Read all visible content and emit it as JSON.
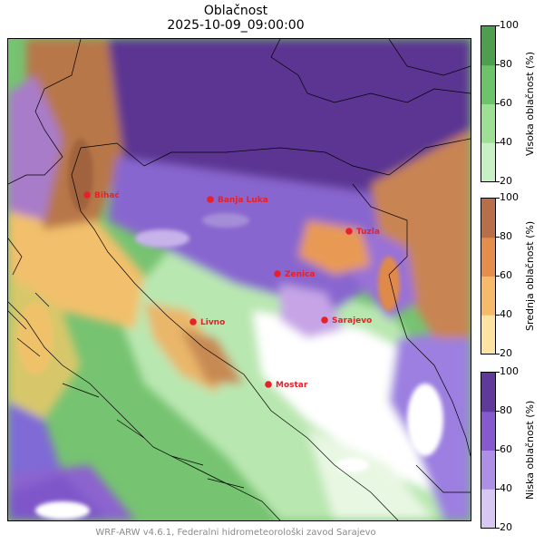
{
  "title": "Oblačnost",
  "subtitle": "2025-10-09_09:00:00",
  "footer": "WRF-ARW v4.6.1, Federalni hidrometeorološki zavod Sarajevo",
  "cities": [
    {
      "name": "Bihać"
    },
    {
      "name": "Banja Luka"
    },
    {
      "name": "Tuzla"
    },
    {
      "name": "Zenica"
    },
    {
      "name": "Sarajevo"
    },
    {
      "name": "Livno"
    },
    {
      "name": "Mostar"
    }
  ],
  "colorbars": [
    {
      "label": "Visoka oblačnost (%)",
      "ticks": [
        "100",
        "80",
        "60",
        "40",
        "20"
      ],
      "colors": [
        "#c7f1c4",
        "#9edf96",
        "#6cc36a",
        "#4f9d4f"
      ]
    },
    {
      "label": "Srednja oblačnost (%)",
      "ticks": [
        "100",
        "80",
        "60",
        "40",
        "20"
      ],
      "colors": [
        "#fde3a2",
        "#f5ba6a",
        "#e48d4c",
        "#b86e48"
      ]
    },
    {
      "label": "Niska oblačnost (%)",
      "ticks": [
        "100",
        "80",
        "60",
        "40",
        "20"
      ],
      "colors": [
        "#d6c7f3",
        "#ad90e6",
        "#8659cf",
        "#5f3a9a"
      ]
    }
  ],
  "colors": {
    "city_marker": "#e8202a",
    "city_label": "#e8202a"
  }
}
